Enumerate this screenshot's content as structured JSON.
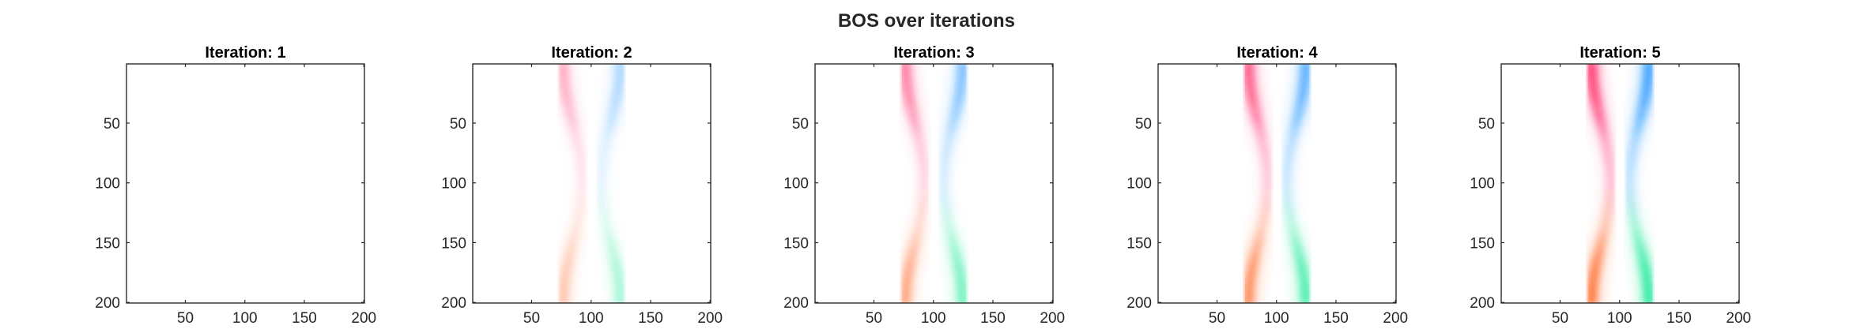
{
  "chart_data": {
    "type": "heatmap",
    "title": "BOS over iterations",
    "grid": false,
    "colors": {
      "red_strand": "#ff0a55",
      "orange_strand": "#ff5a14",
      "blue_strand": "#0a8cff",
      "green_strand": "#00e68c",
      "axis": "#262626",
      "background": "#ffffff"
    },
    "x_ticks": [
      50,
      100,
      150,
      200
    ],
    "y_ticks": [
      50,
      100,
      150,
      200
    ],
    "xlim": [
      0.5,
      200.5
    ],
    "ylim": [
      0.5,
      200.5
    ],
    "panels": [
      {
        "title": "Iteration: 1",
        "intensity": 0.0
      },
      {
        "title": "Iteration: 2",
        "intensity": 0.38
      },
      {
        "title": "Iteration: 3",
        "intensity": 0.62
      },
      {
        "title": "Iteration: 4",
        "intensity": 0.82
      },
      {
        "title": "Iteration: 5",
        "intensity": 1.0
      }
    ]
  }
}
